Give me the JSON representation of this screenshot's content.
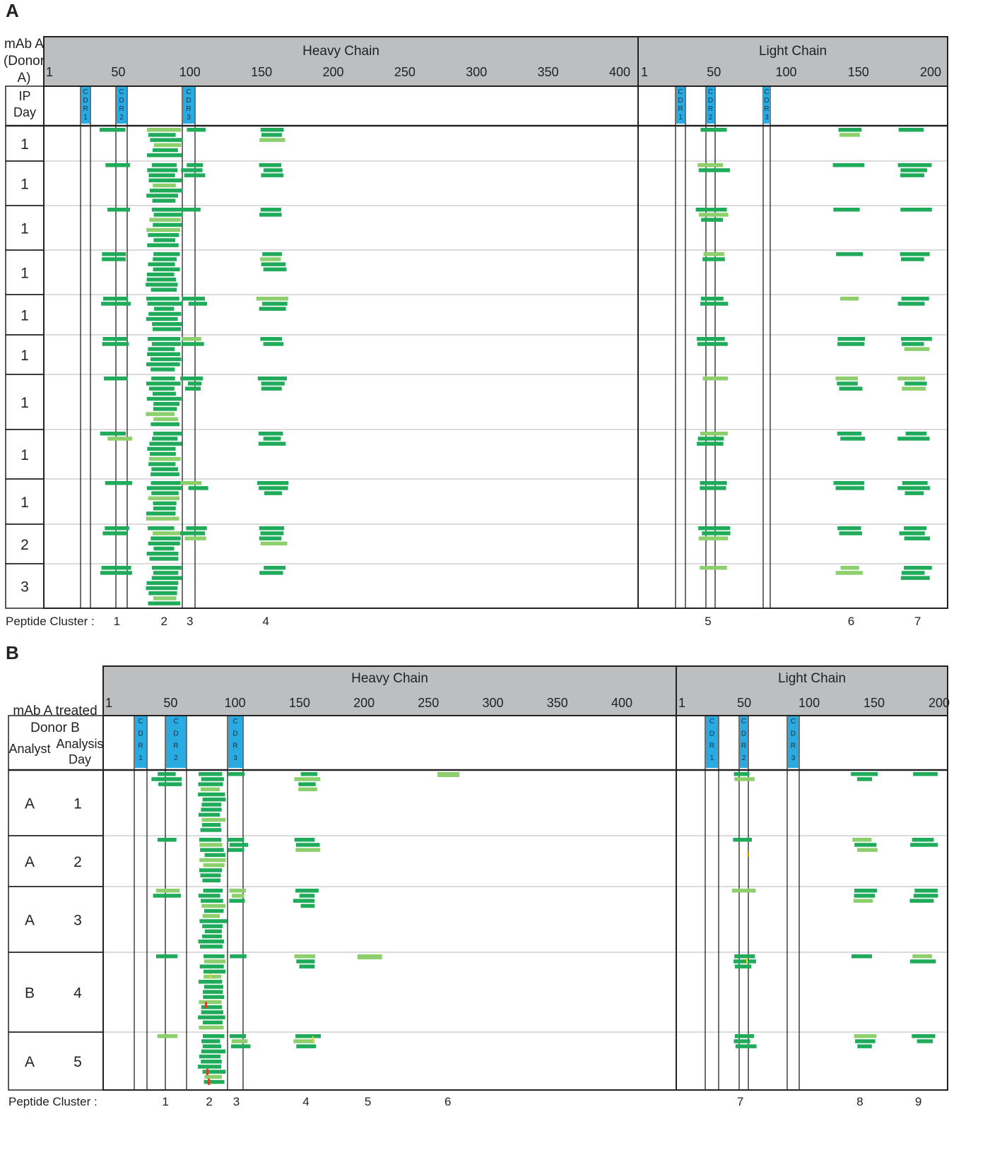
{
  "panels": [
    {
      "letter": "A",
      "side_label_lines": [
        "mAb A",
        "(Donor",
        "A)"
      ],
      "col_headers": [
        [
          "IP",
          "Day"
        ]
      ],
      "heavy": {
        "title": "Heavy Chain",
        "ticks": [
          "1",
          "50",
          "100",
          "150",
          "200",
          "250",
          "300",
          "350",
          "400"
        ],
        "cdrs": [
          {
            "label": "CDR1",
            "chars": [
              "C",
              "D",
              "R",
              "1"
            ]
          },
          {
            "label": "CDR2",
            "chars": [
              "C",
              "D",
              "R",
              "2"
            ]
          },
          {
            "label": "CDR3",
            "chars": [
              "C",
              "D",
              "R",
              "3"
            ]
          }
        ]
      },
      "light": {
        "title": "Light Chain",
        "ticks": [
          "1",
          "50",
          "100",
          "150",
          "200"
        ],
        "cdrs": [
          {
            "label": "CDR1",
            "chars": [
              "C",
              "D",
              "R",
              "1"
            ]
          },
          {
            "label": "CDR2",
            "chars": [
              "C",
              "D",
              "R",
              "2"
            ]
          },
          {
            "label": "CDR3",
            "chars": [
              "C",
              "D",
              "R",
              "3"
            ]
          }
        ]
      },
      "rows": [
        {
          "cells": [
            "1"
          ]
        },
        {
          "cells": [
            "1"
          ]
        },
        {
          "cells": [
            "1"
          ]
        },
        {
          "cells": [
            "1"
          ]
        },
        {
          "cells": [
            "1"
          ]
        },
        {
          "cells": [
            "1"
          ]
        },
        {
          "cells": [
            "1"
          ]
        },
        {
          "cells": [
            "1"
          ]
        },
        {
          "cells": [
            "1"
          ]
        },
        {
          "cells": [
            "2"
          ]
        },
        {
          "cells": [
            "3"
          ]
        }
      ],
      "cluster_label": "Peptide Cluster :",
      "clusters": [
        {
          "label": "1",
          "chain": "heavy",
          "pos": 49
        },
        {
          "label": "2",
          "chain": "heavy",
          "pos": 82
        },
        {
          "label": "3",
          "chain": "heavy",
          "pos": 100
        },
        {
          "label": "4",
          "chain": "heavy",
          "pos": 153
        },
        {
          "label": "5",
          "chain": "light",
          "pos": 46
        },
        {
          "label": "6",
          "chain": "light",
          "pos": 145
        },
        {
          "label": "7",
          "chain": "light",
          "pos": 191
        }
      ]
    },
    {
      "letter": "B",
      "side_label_lines": [
        "mAb A treated",
        "Donor B"
      ],
      "col_headers": [
        [
          "Analyst"
        ],
        [
          "Analysis",
          "Day"
        ]
      ],
      "heavy": {
        "title": "Heavy Chain",
        "ticks": [
          "1",
          "50",
          "100",
          "150",
          "200",
          "250",
          "300",
          "350",
          "400"
        ],
        "cdrs": [
          {
            "label": "CDR1",
            "chars": [
              "C",
              "D",
              "R",
              "1"
            ]
          },
          {
            "label": "CDR2",
            "chars": [
              "C",
              "D",
              "R",
              "2"
            ]
          },
          {
            "label": "CDR3",
            "chars": [
              "C",
              "D",
              "R",
              "3"
            ]
          }
        ]
      },
      "light": {
        "title": "Light Chain",
        "ticks": [
          "1",
          "50",
          "100",
          "150",
          "200"
        ],
        "cdrs": [
          {
            "label": "CDR1",
            "chars": [
              "C",
              "D",
              "R",
              "1"
            ]
          },
          {
            "label": "CDR2",
            "chars": [
              "C",
              "D",
              "R",
              "2"
            ]
          },
          {
            "label": "CDR3",
            "chars": [
              "C",
              "D",
              "R",
              "3"
            ]
          }
        ]
      },
      "rows": [
        {
          "cells": [
            "A",
            "1"
          ]
        },
        {
          "cells": [
            "A",
            "2"
          ]
        },
        {
          "cells": [
            "A",
            "3"
          ]
        },
        {
          "cells": [
            "B",
            "4"
          ]
        },
        {
          "cells": [
            "A",
            "5"
          ]
        }
      ],
      "cluster_label": "Peptide Cluster :",
      "clusters": [
        {
          "label": "1",
          "chain": "heavy",
          "pos": 46
        },
        {
          "label": "2",
          "chain": "heavy",
          "pos": 80
        },
        {
          "label": "3",
          "chain": "heavy",
          "pos": 101
        },
        {
          "label": "4",
          "chain": "heavy",
          "pos": 155
        },
        {
          "label": "5",
          "chain": "heavy",
          "pos": 203
        },
        {
          "label": "6",
          "chain": "heavy",
          "pos": 265
        },
        {
          "label": "7",
          "chain": "light",
          "pos": 47
        },
        {
          "label": "8",
          "chain": "light",
          "pos": 139
        },
        {
          "label": "9",
          "chain": "light",
          "pos": 184
        }
      ]
    }
  ],
  "colors": {
    "header_fill": "#bcbec0",
    "cdr_fill": "#29abe2",
    "peptide": "#1fab5a",
    "peptide_light": "#8ccf6c",
    "mark_yellow": "#f2d21a",
    "mark_red": "#d9412a",
    "grid": "#b8b8b8"
  }
}
